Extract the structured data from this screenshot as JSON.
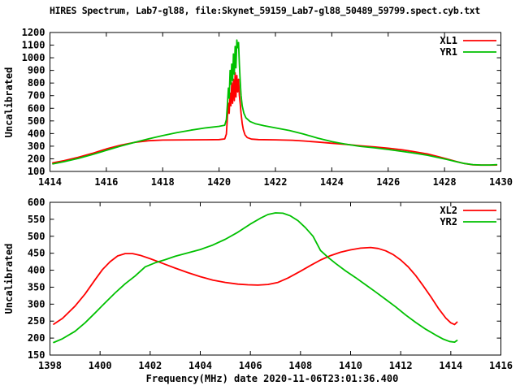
{
  "figure": {
    "title": "HIRES Spectrum, Lab7-gl88, file:Skynet_59159_Lab7-gl88_50489_59799.spect.cyb.txt",
    "xlabel": "Frequency(MHz) date 2020-11-06T23:01:36.400",
    "background_color": "#ffffff",
    "foreground_color": "#000000"
  },
  "chart_data": [
    {
      "type": "line",
      "panel": "top",
      "title": "",
      "xlabel": "",
      "ylabel": "Uncalibrated",
      "xlim": [
        1414,
        1430
      ],
      "ylim": [
        100,
        1200
      ],
      "xticks": [
        1414,
        1416,
        1418,
        1420,
        1422,
        1424,
        1426,
        1428,
        1430
      ],
      "yticks": [
        100,
        200,
        300,
        400,
        500,
        600,
        700,
        800,
        900,
        1000,
        1100,
        1200
      ],
      "grid": false,
      "legend_position": "top-right-inside",
      "series": [
        {
          "name": "XL1",
          "color": "#ff0000",
          "points": [
            [
              1414.1,
              168
            ],
            [
              1414.5,
              185
            ],
            [
              1415,
              212
            ],
            [
              1415.5,
              243
            ],
            [
              1416,
              278
            ],
            [
              1416.5,
              308
            ],
            [
              1417,
              330
            ],
            [
              1417.5,
              343
            ],
            [
              1418,
              348
            ],
            [
              1419,
              350
            ],
            [
              1419.5,
              351
            ],
            [
              1420,
              352
            ],
            [
              1420.2,
              357
            ],
            [
              1420.26,
              395
            ],
            [
              1420.3,
              540
            ],
            [
              1420.33,
              640
            ],
            [
              1420.36,
              560
            ],
            [
              1420.39,
              720
            ],
            [
              1420.42,
              620
            ],
            [
              1420.45,
              800
            ],
            [
              1420.48,
              640
            ],
            [
              1420.51,
              830
            ],
            [
              1420.54,
              660
            ],
            [
              1420.57,
              880
            ],
            [
              1420.6,
              690
            ],
            [
              1420.63,
              860
            ],
            [
              1420.66,
              730
            ],
            [
              1420.69,
              830
            ],
            [
              1420.72,
              700
            ],
            [
              1420.75,
              640
            ],
            [
              1420.78,
              560
            ],
            [
              1420.82,
              480
            ],
            [
              1420.86,
              430
            ],
            [
              1420.92,
              390
            ],
            [
              1421,
              368
            ],
            [
              1421.15,
              356
            ],
            [
              1421.4,
              352
            ],
            [
              1422,
              350
            ],
            [
              1422.6,
              347
            ],
            [
              1423,
              341
            ],
            [
              1423.5,
              333
            ],
            [
              1424,
              323
            ],
            [
              1424.5,
              314
            ],
            [
              1425,
              303
            ],
            [
              1425.5,
              294
            ],
            [
              1426,
              284
            ],
            [
              1426.5,
              271
            ],
            [
              1427,
              254
            ],
            [
              1427.4,
              238
            ],
            [
              1427.8,
              216
            ],
            [
              1428.1,
              198
            ],
            [
              1428.4,
              180
            ],
            [
              1428.7,
              163
            ],
            [
              1429,
              153
            ],
            [
              1429.3,
              150
            ],
            [
              1429.6,
              150
            ],
            [
              1429.85,
              151
            ]
          ]
        },
        {
          "name": "YR1",
          "color": "#00c000",
          "points": [
            [
              1414.1,
              160
            ],
            [
              1414.5,
              177
            ],
            [
              1415,
              203
            ],
            [
              1415.5,
              233
            ],
            [
              1416,
              267
            ],
            [
              1416.5,
              300
            ],
            [
              1417,
              330
            ],
            [
              1417.5,
              358
            ],
            [
              1418,
              384
            ],
            [
              1418.5,
              407
            ],
            [
              1419,
              427
            ],
            [
              1419.5,
              444
            ],
            [
              1420,
              457
            ],
            [
              1420.2,
              466
            ],
            [
              1420.26,
              510
            ],
            [
              1420.3,
              640
            ],
            [
              1420.33,
              760
            ],
            [
              1420.36,
              680
            ],
            [
              1420.39,
              900
            ],
            [
              1420.42,
              790
            ],
            [
              1420.45,
              950
            ],
            [
              1420.48,
              820
            ],
            [
              1420.51,
              1030
            ],
            [
              1420.54,
              870
            ],
            [
              1420.57,
              1090
            ],
            [
              1420.6,
              920
            ],
            [
              1420.63,
              1140
            ],
            [
              1420.66,
              1080
            ],
            [
              1420.69,
              1120
            ],
            [
              1420.72,
              950
            ],
            [
              1420.75,
              820
            ],
            [
              1420.78,
              700
            ],
            [
              1420.82,
              620
            ],
            [
              1420.88,
              560
            ],
            [
              1420.95,
              525
            ],
            [
              1421.1,
              495
            ],
            [
              1421.3,
              477
            ],
            [
              1421.6,
              462
            ],
            [
              1422,
              445
            ],
            [
              1422.5,
              424
            ],
            [
              1423,
              396
            ],
            [
              1423.5,
              364
            ],
            [
              1424,
              336
            ],
            [
              1424.3,
              324
            ],
            [
              1424.6,
              312
            ],
            [
              1425,
              299
            ],
            [
              1425.5,
              287
            ],
            [
              1426,
              274
            ],
            [
              1426.5,
              259
            ],
            [
              1427,
              243
            ],
            [
              1427.4,
              228
            ],
            [
              1427.8,
              209
            ],
            [
              1428.1,
              194
            ],
            [
              1428.4,
              178
            ],
            [
              1428.7,
              163
            ],
            [
              1429,
              154
            ],
            [
              1429.3,
              151
            ],
            [
              1429.6,
              151
            ],
            [
              1429.85,
              154
            ]
          ]
        }
      ]
    },
    {
      "type": "line",
      "panel": "bottom",
      "title": "",
      "xlabel": "Frequency(MHz) date 2020-11-06T23:01:36.400",
      "ylabel": "Uncalibrated",
      "xlim": [
        1398,
        1416
      ],
      "ylim": [
        150,
        600
      ],
      "xticks": [
        1398,
        1400,
        1402,
        1404,
        1406,
        1408,
        1410,
        1412,
        1414,
        1416
      ],
      "yticks": [
        150,
        200,
        250,
        300,
        350,
        400,
        450,
        500,
        550,
        600
      ],
      "grid": false,
      "legend_position": "top-right-inside",
      "series": [
        {
          "name": "XL2",
          "color": "#ff0000",
          "points": [
            [
              1398.15,
              241
            ],
            [
              1398.5,
              258
            ],
            [
              1399,
              294
            ],
            [
              1399.4,
              330
            ],
            [
              1399.8,
              372
            ],
            [
              1400.1,
              402
            ],
            [
              1400.4,
              425
            ],
            [
              1400.7,
              442
            ],
            [
              1401,
              449
            ],
            [
              1401.3,
              449
            ],
            [
              1401.6,
              444
            ],
            [
              1402,
              434
            ],
            [
              1402.5,
              420
            ],
            [
              1403,
              406
            ],
            [
              1403.5,
              393
            ],
            [
              1404,
              381
            ],
            [
              1404.5,
              371
            ],
            [
              1405,
              364
            ],
            [
              1405.5,
              359
            ],
            [
              1405.9,
              357
            ],
            [
              1406.3,
              356
            ],
            [
              1406.7,
              358
            ],
            [
              1407.1,
              364
            ],
            [
              1407.5,
              377
            ],
            [
              1408,
              397
            ],
            [
              1408.4,
              414
            ],
            [
              1408.8,
              430
            ],
            [
              1409.2,
              443
            ],
            [
              1409.6,
              453
            ],
            [
              1410,
              460
            ],
            [
              1410.4,
              465
            ],
            [
              1410.8,
              467
            ],
            [
              1411.1,
              464
            ],
            [
              1411.4,
              457
            ],
            [
              1411.7,
              446
            ],
            [
              1412,
              430
            ],
            [
              1412.3,
              410
            ],
            [
              1412.6,
              384
            ],
            [
              1412.9,
              354
            ],
            [
              1413.2,
              322
            ],
            [
              1413.5,
              288
            ],
            [
              1413.8,
              259
            ],
            [
              1414,
              245
            ],
            [
              1414.15,
              240
            ],
            [
              1414.25,
              247
            ]
          ]
        },
        {
          "name": "YR2",
          "color": "#00c000",
          "points": [
            [
              1398.15,
              187
            ],
            [
              1398.5,
              198
            ],
            [
              1399,
              220
            ],
            [
              1399.4,
              245
            ],
            [
              1399.8,
              274
            ],
            [
              1400.2,
              304
            ],
            [
              1400.6,
              333
            ],
            [
              1401,
              360
            ],
            [
              1401.4,
              383
            ],
            [
              1401.8,
              410
            ],
            [
              1402.2,
              422
            ],
            [
              1402.6,
              431
            ],
            [
              1403,
              441
            ],
            [
              1403.5,
              451
            ],
            [
              1404,
              461
            ],
            [
              1404.5,
              474
            ],
            [
              1405,
              491
            ],
            [
              1405.5,
              512
            ],
            [
              1406,
              536
            ],
            [
              1406.4,
              553
            ],
            [
              1406.7,
              564
            ],
            [
              1407,
              569
            ],
            [
              1407.3,
              568
            ],
            [
              1407.6,
              560
            ],
            [
              1407.9,
              546
            ],
            [
              1408.2,
              525
            ],
            [
              1408.5,
              500
            ],
            [
              1408.8,
              458
            ],
            [
              1409.1,
              438
            ],
            [
              1409.4,
              420
            ],
            [
              1409.8,
              398
            ],
            [
              1410.2,
              378
            ],
            [
              1410.6,
              357
            ],
            [
              1411,
              336
            ],
            [
              1411.4,
              314
            ],
            [
              1411.8,
              292
            ],
            [
              1412.2,
              268
            ],
            [
              1412.6,
              246
            ],
            [
              1413,
              226
            ],
            [
              1413.4,
              209
            ],
            [
              1413.7,
              197
            ],
            [
              1413.95,
              190
            ],
            [
              1414.15,
              188
            ],
            [
              1414.25,
              193
            ]
          ]
        }
      ]
    }
  ]
}
